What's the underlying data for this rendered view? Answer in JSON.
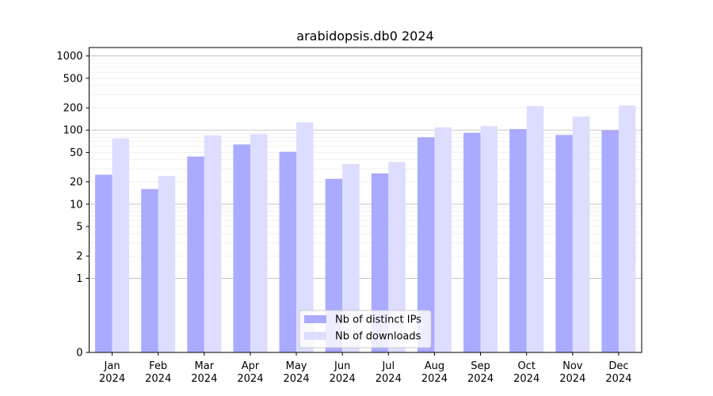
{
  "chart_data": {
    "type": "bar",
    "title": "arabidopsis.db0 2024",
    "xlabel": "",
    "ylabel": "",
    "y_scale": "symlog",
    "categories": [
      [
        "Jan",
        "2024"
      ],
      [
        "Feb",
        "2024"
      ],
      [
        "Mar",
        "2024"
      ],
      [
        "Apr",
        "2024"
      ],
      [
        "May",
        "2024"
      ],
      [
        "Jun",
        "2024"
      ],
      [
        "Jul",
        "2024"
      ],
      [
        "Aug",
        "2024"
      ],
      [
        "Sep",
        "2024"
      ],
      [
        "Oct",
        "2024"
      ],
      [
        "Nov",
        "2024"
      ],
      [
        "Dec",
        "2024"
      ]
    ],
    "series": [
      {
        "name": "Nb of distinct IPs",
        "color": "#aaaaff",
        "values": [
          25,
          16,
          44,
          64,
          51,
          22,
          26,
          80,
          92,
          103,
          86,
          99
        ]
      },
      {
        "name": "Nb of downloads",
        "color": "#ddddff",
        "values": [
          77,
          24,
          85,
          88,
          127,
          35,
          37,
          109,
          113,
          211,
          152,
          214
        ]
      }
    ],
    "yticks": [
      0,
      1,
      2,
      5,
      10,
      20,
      50,
      100,
      200,
      500,
      1000
    ],
    "ytick_labels": [
      "0",
      "1",
      "2",
      "5",
      "10",
      "20",
      "50",
      "100",
      "200",
      "500",
      "1000"
    ],
    "ylim": [
      0,
      1300
    ],
    "grid": true,
    "legend_position": "lower-center"
  }
}
